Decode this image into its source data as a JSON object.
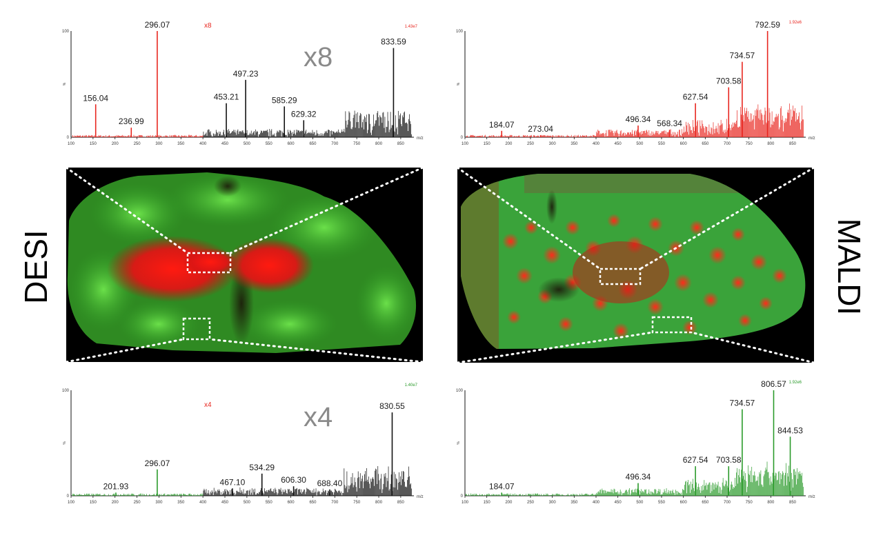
{
  "labels": {
    "left": "DESI",
    "right": "MALDI"
  },
  "colors": {
    "red": "#e8251e",
    "green": "#2a9a2a",
    "black": "#111111",
    "gray_label": "#8a8a8a",
    "tissue_red": "#e01818",
    "tissue_green": "#3fbf2f"
  },
  "chart_data": [
    {
      "type": "line",
      "panel": "DESI top",
      "xlabel": "m/z",
      "ylabel": "%",
      "xlim": [
        100,
        880
      ],
      "ylim": [
        0,
        100
      ],
      "xticks": [
        100,
        150,
        200,
        250,
        300,
        350,
        400,
        450,
        500,
        550,
        600,
        650,
        700,
        750,
        800,
        850
      ],
      "yticks": [
        0,
        100
      ],
      "intensity_label": "1.43e7",
      "magnification_marker": "x8",
      "magnification_text": "x8",
      "magnification_from_mz": 400,
      "colors": {
        "low": "#e8251e",
        "high": "#111111"
      },
      "peaks": [
        {
          "x": 156.04,
          "y": 31,
          "label": "156.04"
        },
        {
          "x": 236.99,
          "y": 9,
          "label": "236.99"
        },
        {
          "x": 296.07,
          "y": 100,
          "label": "296.07"
        },
        {
          "x": 453.21,
          "y": 32,
          "label": "453.21"
        },
        {
          "x": 497.23,
          "y": 54,
          "label": "497.23"
        },
        {
          "x": 585.29,
          "y": 29,
          "label": "585.29"
        },
        {
          "x": 629.32,
          "y": 16,
          "label": "629.32"
        },
        {
          "x": 833.59,
          "y": 84,
          "label": "833.59"
        }
      ]
    },
    {
      "type": "line",
      "panel": "MALDI top",
      "xlabel": "m/z",
      "ylabel": "%",
      "xlim": [
        100,
        880
      ],
      "ylim": [
        0,
        100
      ],
      "xticks": [
        100,
        150,
        200,
        250,
        300,
        350,
        400,
        450,
        500,
        550,
        600,
        650,
        700,
        750,
        800,
        850
      ],
      "yticks": [
        0,
        100
      ],
      "intensity_label": "1.92e6",
      "colors": {
        "low": "#e8251e",
        "high": "#e8251e"
      },
      "peaks": [
        {
          "x": 184.07,
          "y": 6,
          "label": "184.07"
        },
        {
          "x": 273.04,
          "y": 2,
          "label": "273.04"
        },
        {
          "x": 496.34,
          "y": 11,
          "label": "496.34"
        },
        {
          "x": 568.34,
          "y": 7,
          "label": "568.34"
        },
        {
          "x": 627.54,
          "y": 32,
          "label": "627.54"
        },
        {
          "x": 703.58,
          "y": 47,
          "label": "703.58"
        },
        {
          "x": 734.57,
          "y": 71,
          "label": "734.57"
        },
        {
          "x": 792.59,
          "y": 100,
          "label": "792.59"
        }
      ]
    },
    {
      "type": "line",
      "panel": "DESI bottom",
      "xlabel": "m/z",
      "ylabel": "%",
      "xlim": [
        100,
        880
      ],
      "ylim": [
        0,
        100
      ],
      "xticks": [
        100,
        150,
        200,
        250,
        300,
        350,
        400,
        450,
        500,
        550,
        600,
        650,
        700,
        750,
        800,
        850
      ],
      "yticks": [
        0,
        100
      ],
      "intensity_label": "1.40e7",
      "magnification_marker": "x4",
      "magnification_text": "x4",
      "magnification_from_mz": 400,
      "colors": {
        "low": "#2a9a2a",
        "high": "#111111"
      },
      "peaks": [
        {
          "x": 201.93,
          "y": 3,
          "label": "201.93"
        },
        {
          "x": 296.07,
          "y": 25,
          "label": "296.07"
        },
        {
          "x": 467.1,
          "y": 7,
          "label": "467.10"
        },
        {
          "x": 534.29,
          "y": 21,
          "label": "534.29"
        },
        {
          "x": 606.3,
          "y": 9,
          "label": "606.30"
        },
        {
          "x": 688.4,
          "y": 6,
          "label": "688.40"
        },
        {
          "x": 830.55,
          "y": 79,
          "label": "830.55"
        }
      ]
    },
    {
      "type": "line",
      "panel": "MALDI bottom",
      "xlabel": "m/z",
      "ylabel": "%",
      "xlim": [
        100,
        880
      ],
      "ylim": [
        0,
        100
      ],
      "xticks": [
        100,
        150,
        200,
        250,
        300,
        350,
        400,
        450,
        500,
        550,
        600,
        650,
        700,
        750,
        800,
        850
      ],
      "yticks": [
        0,
        100
      ],
      "intensity_label": "1.92e6",
      "colors": {
        "low": "#2a9a2a",
        "high": "#2a9a2a"
      },
      "peaks": [
        {
          "x": 184.07,
          "y": 3,
          "label": "184.07"
        },
        {
          "x": 496.34,
          "y": 12,
          "label": "496.34"
        },
        {
          "x": 627.54,
          "y": 28,
          "label": "627.54"
        },
        {
          "x": 703.58,
          "y": 28,
          "label": "703.58"
        },
        {
          "x": 734.57,
          "y": 82,
          "label": "734.57"
        },
        {
          "x": 806.57,
          "y": 100,
          "label": "806.57"
        },
        {
          "x": 844.53,
          "y": 56,
          "label": "844.53"
        }
      ]
    }
  ]
}
